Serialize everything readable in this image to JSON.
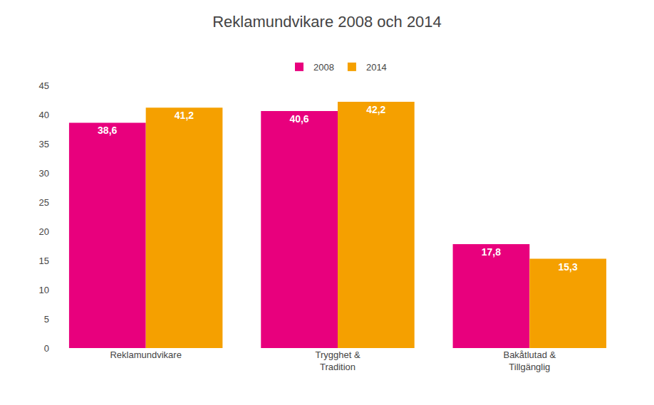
{
  "chart_data": {
    "type": "bar",
    "title": "Reklamundvikare 2008 och 2014",
    "categories": [
      "Reklamundvikare",
      "Trygghet &\nTradition",
      "Bakåtlutad &\nTillgänglig"
    ],
    "series": [
      {
        "name": "2008",
        "color": "#E8007D",
        "values": [
          38.6,
          40.6,
          17.8
        ],
        "value_labels": [
          "38,6",
          "40,6",
          "17,8"
        ]
      },
      {
        "name": "2014",
        "color": "#F5A000",
        "values": [
          41.2,
          42.2,
          15.3
        ],
        "value_labels": [
          "41,2",
          "42,2",
          "15,3"
        ]
      }
    ],
    "ylim": [
      0,
      45
    ],
    "yticks": [
      0,
      5,
      10,
      15,
      20,
      25,
      30,
      35,
      40,
      45
    ],
    "grid": false,
    "legend": "top",
    "data_labels": true
  }
}
